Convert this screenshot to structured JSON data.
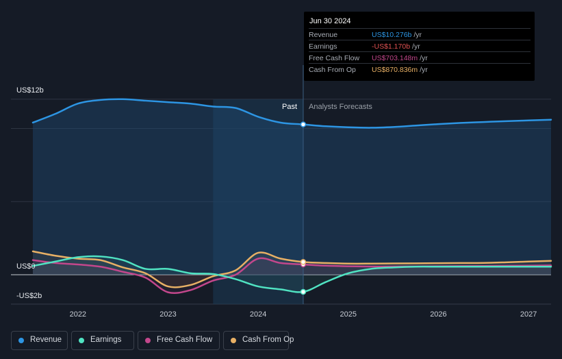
{
  "chart_data": {
    "type": "line",
    "y_tick_labels": [
      "US$12b",
      "US$0",
      "-US$2b"
    ],
    "x_tick_labels": [
      "2022",
      "2023",
      "2024",
      "2025",
      "2026",
      "2027"
    ],
    "x_ticks": [
      2022,
      2023,
      2024,
      2025,
      2026,
      2027
    ],
    "xlim": [
      2021.5,
      2027.25
    ],
    "ylim": [
      -2.0,
      12.0
    ],
    "y_unit": "US$b",
    "gridlines": [
      -2,
      0,
      5,
      10,
      12
    ],
    "divider_x": 2024.5,
    "past_shade_start": 2023.5,
    "region_labels": {
      "past": "Past",
      "forecast": "Analysts Forecasts"
    },
    "series": [
      {
        "name": "Revenue",
        "color": "#2d95e3",
        "x": [
          2021.5,
          2021.75,
          2022.0,
          2022.25,
          2022.5,
          2022.75,
          2023.0,
          2023.25,
          2023.5,
          2023.75,
          2024.0,
          2024.25,
          2024.5,
          2024.75,
          2025.0,
          2025.25,
          2025.5,
          2025.75,
          2026.0,
          2026.25,
          2026.5,
          2026.75,
          2027.0,
          2027.25
        ],
        "values": [
          10.4,
          11.0,
          11.7,
          11.95,
          12.0,
          11.9,
          11.8,
          11.7,
          11.5,
          11.4,
          10.8,
          10.4,
          10.276,
          10.15,
          10.08,
          10.05,
          10.1,
          10.2,
          10.3,
          10.38,
          10.44,
          10.5,
          10.55,
          10.6
        ]
      },
      {
        "name": "Earnings",
        "color": "#50e3c2",
        "x": [
          2021.5,
          2021.75,
          2022.0,
          2022.25,
          2022.5,
          2022.75,
          2023.0,
          2023.25,
          2023.5,
          2023.75,
          2024.0,
          2024.25,
          2024.5,
          2024.75,
          2025.0,
          2025.25,
          2025.5,
          2025.75,
          2026.0,
          2026.25,
          2026.5,
          2026.75,
          2027.0,
          2027.25
        ],
        "values": [
          0.6,
          0.9,
          1.2,
          1.25,
          1.0,
          0.4,
          0.4,
          0.1,
          0.05,
          -0.3,
          -0.8,
          -1.0,
          -1.17,
          -0.5,
          0.1,
          0.4,
          0.5,
          0.55,
          0.55,
          0.55,
          0.55,
          0.55,
          0.55,
          0.55
        ]
      },
      {
        "name": "Free Cash Flow",
        "color": "#c3478c",
        "x": [
          2021.5,
          2021.75,
          2022.0,
          2022.25,
          2022.5,
          2022.75,
          2023.0,
          2023.25,
          2023.5,
          2023.75,
          2024.0,
          2024.25,
          2024.5,
          2024.75,
          2025.0,
          2025.25,
          2025.5,
          2025.75,
          2026.0,
          2026.25,
          2026.5,
          2026.75,
          2027.0,
          2027.25
        ],
        "values": [
          1.0,
          0.8,
          0.7,
          0.55,
          0.2,
          -0.2,
          -1.2,
          -1.05,
          -0.4,
          0.0,
          1.1,
          0.8,
          0.703,
          0.62,
          0.58,
          0.56,
          0.56,
          0.57,
          0.58,
          0.59,
          0.6,
          0.61,
          0.62,
          0.64
        ]
      },
      {
        "name": "Cash From Op",
        "color": "#e8b065",
        "x": [
          2021.5,
          2021.75,
          2022.0,
          2022.25,
          2022.5,
          2022.75,
          2023.0,
          2023.25,
          2023.5,
          2023.75,
          2024.0,
          2024.25,
          2024.5,
          2024.75,
          2025.0,
          2025.25,
          2025.5,
          2025.75,
          2026.0,
          2026.25,
          2026.5,
          2026.75,
          2027.0,
          2027.25
        ],
        "values": [
          1.6,
          1.3,
          1.1,
          1.0,
          0.5,
          0.1,
          -0.8,
          -0.7,
          -0.1,
          0.3,
          1.5,
          1.1,
          0.871,
          0.8,
          0.76,
          0.76,
          0.77,
          0.78,
          0.79,
          0.8,
          0.81,
          0.85,
          0.9,
          0.95
        ]
      }
    ],
    "marker_x": 2024.5
  },
  "tooltip": {
    "date": "Jun 30 2024",
    "rows": [
      {
        "label": "Revenue",
        "value": "US$10.276b",
        "unit": "/yr",
        "color": "#2d95e3"
      },
      {
        "label": "Earnings",
        "value": "-US$1.170b",
        "unit": "/yr",
        "color": "#e05252"
      },
      {
        "label": "Free Cash Flow",
        "value": "US$703.148m",
        "unit": "/yr",
        "color": "#c3478c"
      },
      {
        "label": "Cash From Op",
        "value": "US$870.836m",
        "unit": "/yr",
        "color": "#e8b065"
      }
    ]
  },
  "legend": [
    {
      "label": "Revenue",
      "color": "#2d95e3"
    },
    {
      "label": "Earnings",
      "color": "#50e3c2"
    },
    {
      "label": "Free Cash Flow",
      "color": "#c3478c"
    },
    {
      "label": "Cash From Op",
      "color": "#e8b065"
    }
  ]
}
